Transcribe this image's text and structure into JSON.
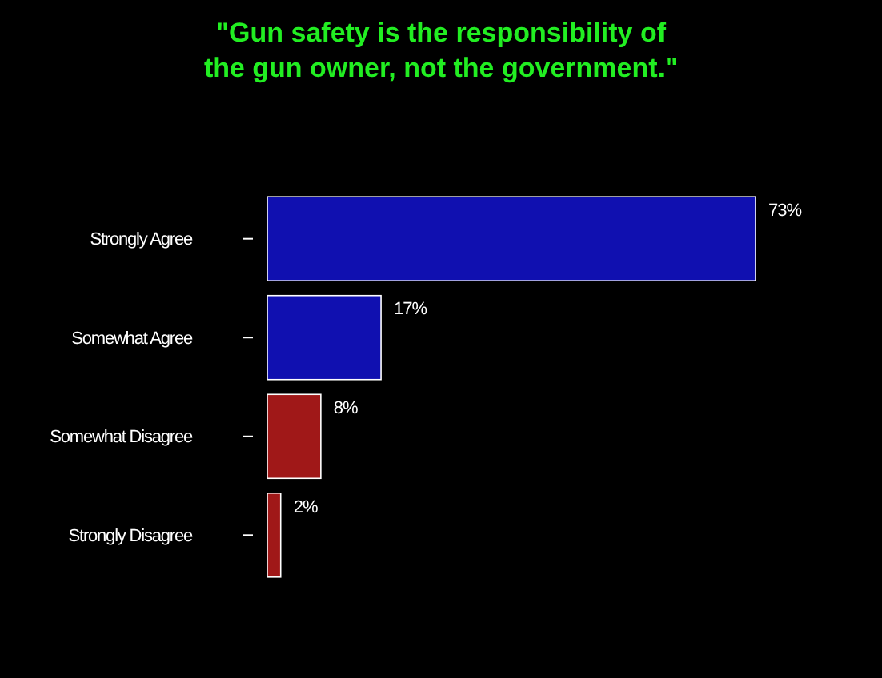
{
  "chart_data": {
    "type": "bar",
    "orientation": "horizontal",
    "title": "\"Gun safety is the responsibility of\nthe gun owner, not the government.\"",
    "categories": [
      "Strongly Agree",
      "Somewhat Agree",
      "Somewhat Disagree",
      "Strongly Disagree"
    ],
    "values": [
      73,
      17,
      8,
      2
    ],
    "colors": [
      "#1010b0",
      "#1010b0",
      "#a01818",
      "#a01818"
    ],
    "value_labels": [
      "73%",
      "17%",
      "8%",
      "2%"
    ],
    "tick_labels": "y"
  }
}
